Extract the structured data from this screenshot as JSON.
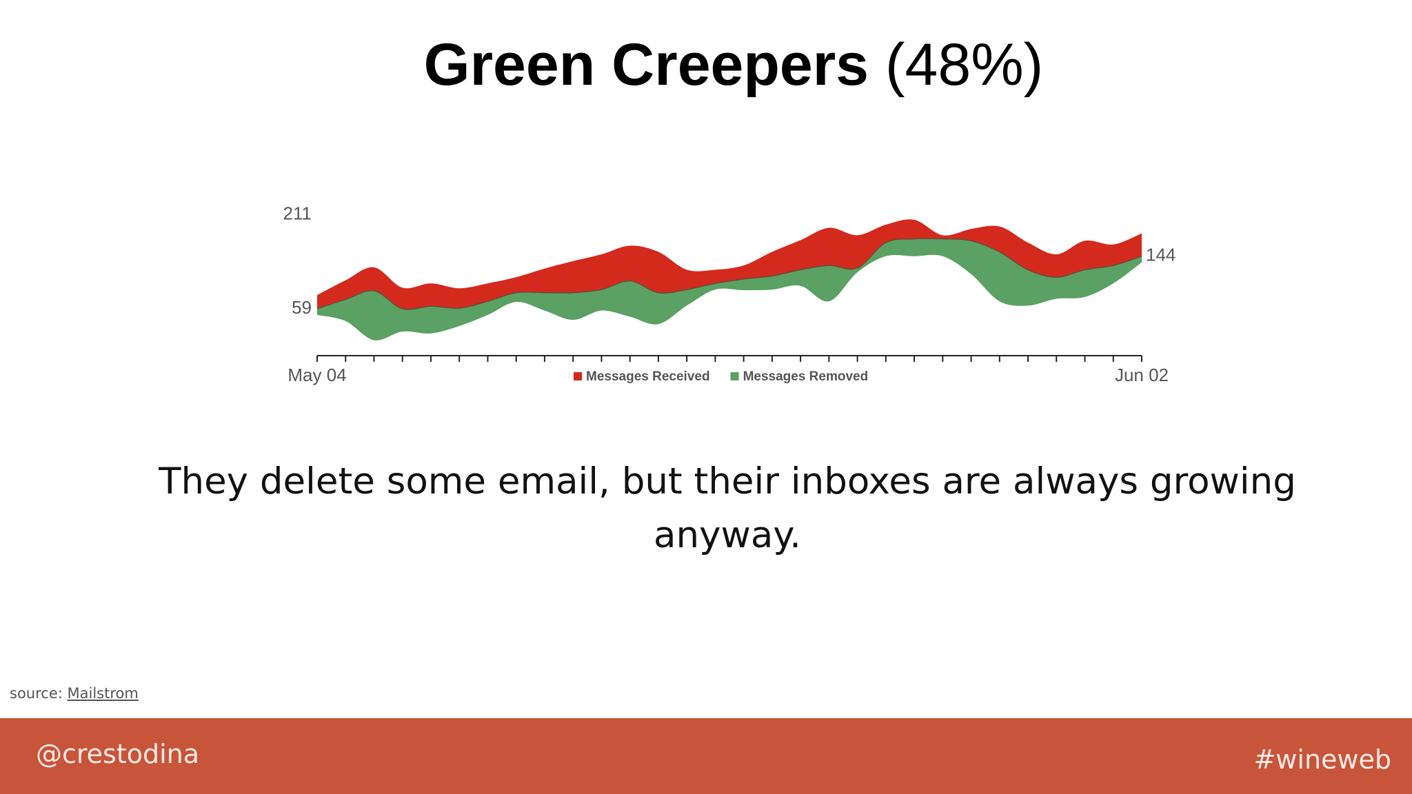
{
  "title": {
    "bold": "Green Creepers",
    "rest": "(48%)"
  },
  "chart_data": {
    "type": "stream",
    "categories": [
      "May 04",
      null,
      null,
      null,
      null,
      null,
      null,
      null,
      null,
      null,
      null,
      null,
      null,
      null,
      null,
      null,
      null,
      null,
      null,
      null,
      null,
      null,
      null,
      null,
      null,
      null,
      null,
      null,
      null,
      "Jun 02"
    ],
    "values": [
      59,
      74,
      88,
      59,
      63,
      60,
      71,
      85,
      85,
      85,
      90,
      104,
      85,
      90,
      100,
      107,
      112,
      122,
      129,
      125,
      166,
      172,
      172,
      169,
      151,
      122,
      110,
      122,
      129,
      144
    ],
    "end_label": true,
    "series": [
      {
        "name": "Messages Received",
        "color": "#d42a1e",
        "values": [
          22,
          31,
          38,
          34,
          37,
          32,
          29,
          25,
          39,
          51,
          57,
          57,
          66,
          32,
          22,
          22,
          39,
          48,
          61,
          53,
          29,
          31,
          6,
          19,
          41,
          44,
          37,
          47,
          34,
          37
        ]
      },
      {
        "name": "Messages Removed",
        "color": "#5aa163",
        "values": [
          10,
          35,
          80,
          37,
          44,
          29,
          22,
          15,
          29,
          44,
          34,
          58,
          51,
          26,
          10,
          18,
          22,
          26,
          58,
          7,
          22,
          28,
          28,
          54,
          80,
          58,
          35,
          44,
          29,
          10
        ]
      }
    ],
    "ylim": [
      -17,
      224
    ],
    "yticks": [
      59,
      211
    ],
    "grid": false,
    "legend": "bottom"
  },
  "caption": "They delete some email, but their inboxes are always growing anyway.",
  "source": {
    "label": "source:",
    "link": "Mailstrom"
  },
  "footer": {
    "left": "@crestodina",
    "right": "#wineweb"
  }
}
